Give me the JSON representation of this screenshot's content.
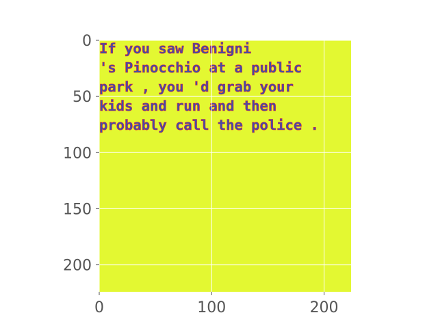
{
  "chart_data": {
    "type": "heatmap",
    "title": "",
    "xlabel": "",
    "ylabel": "",
    "xlim": [
      0,
      224
    ],
    "ylim": [
      224,
      0
    ],
    "x_ticks": [
      0,
      100,
      200
    ],
    "y_ticks": [
      0,
      50,
      100,
      150,
      200
    ],
    "x_tick_labels": [
      "0",
      "100",
      "200"
    ],
    "y_tick_labels": [
      "0",
      "50",
      "100",
      "150",
      "200"
    ],
    "grid": true,
    "background_color": "#e3f832",
    "text_color": "#3f4fa8",
    "text_outline_color": "#e2203a",
    "rendered_text_lines": [
      "        If you saw Benigni",
      "'s Pinocchio at a public",
      "park , you 'd grab your",
      "kids and run and then",
      "probably call the police ."
    ]
  }
}
